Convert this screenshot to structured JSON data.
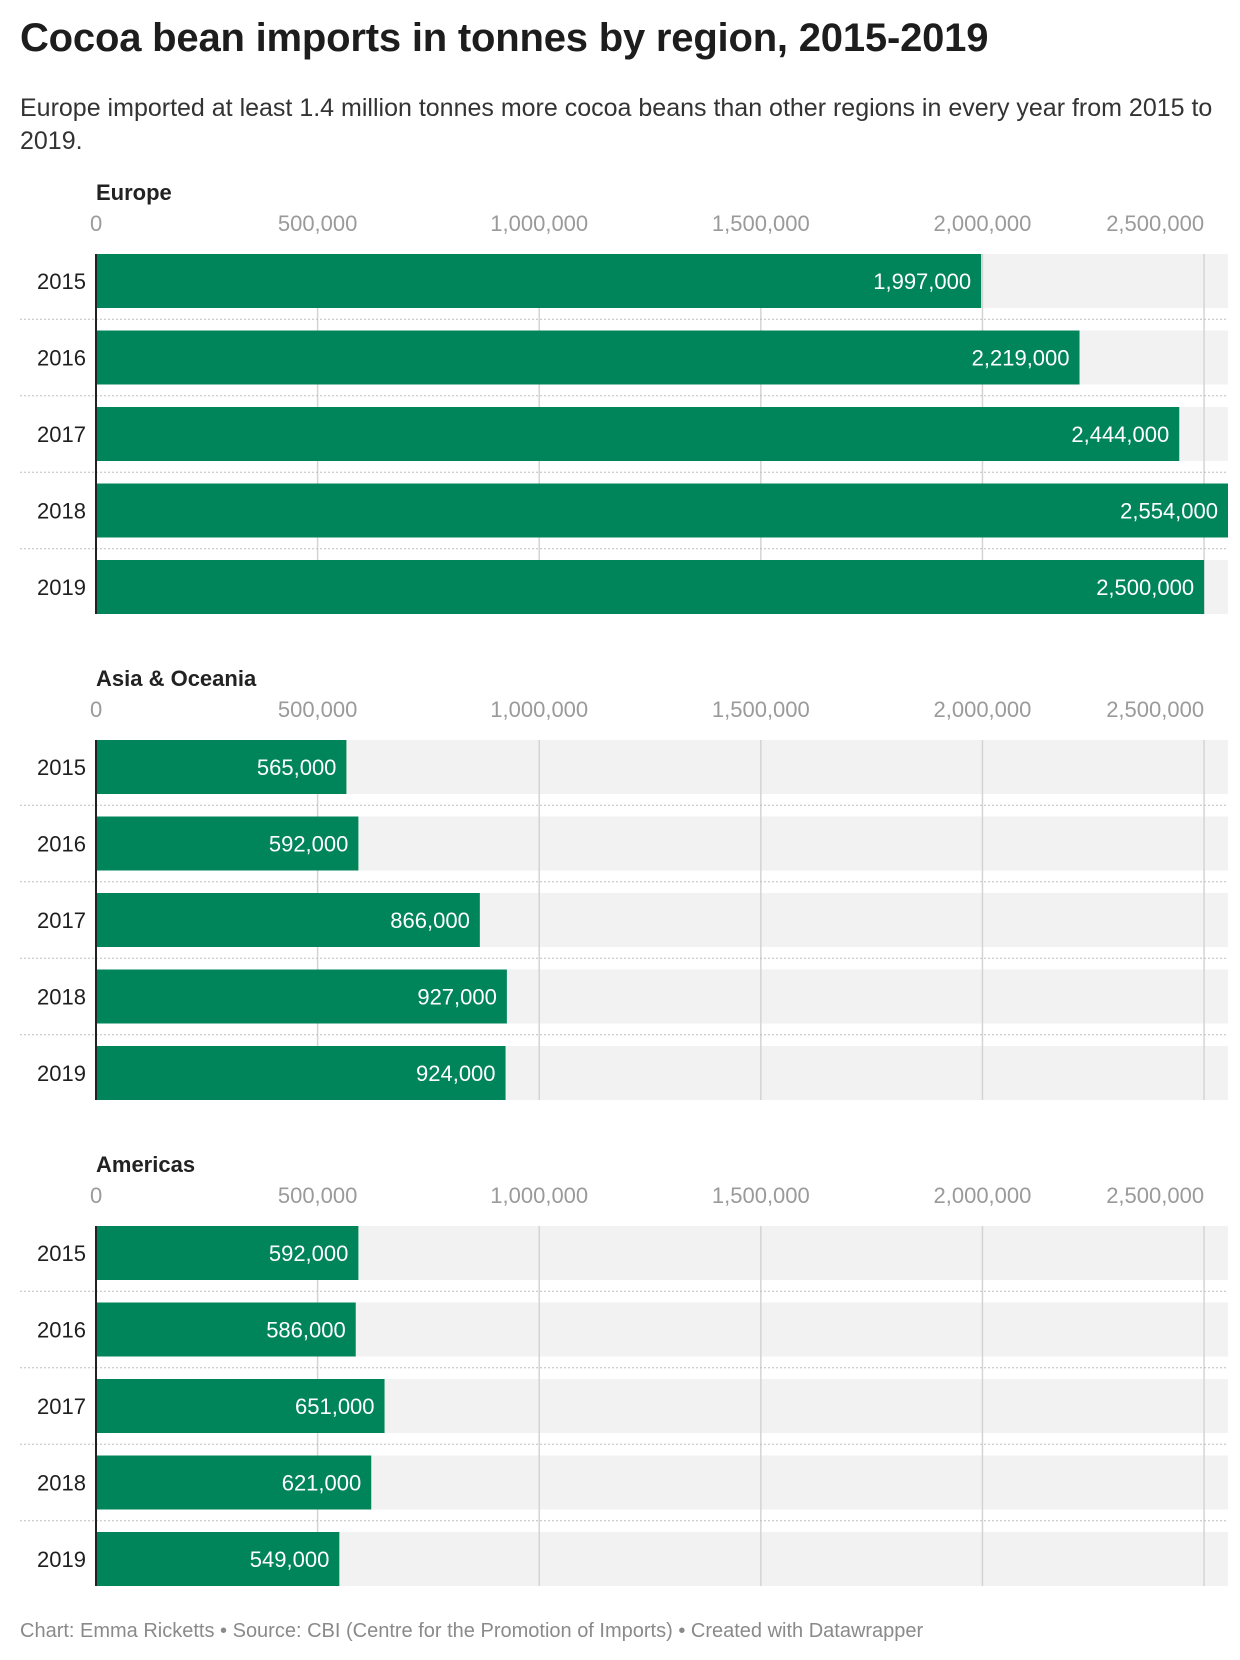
{
  "header": {
    "title": "Cocoa bean imports in tonnes by region, 2015-2019",
    "subtitle": "Europe imported at least 1.4 million tonnes more cocoa beans than other regions in every year from 2015 to 2019."
  },
  "footer": {
    "credit": "Chart: Emma Ricketts • Source: CBI (Centre for the Promotion of Imports) • Created with Datawrapper"
  },
  "colors": {
    "bar": "#00855a",
    "track": "#f2f2f2",
    "grid": "#d4d4d4",
    "tick_label": "#9a9a9a"
  },
  "chart_data": [
    {
      "type": "bar",
      "orientation": "horizontal",
      "title": "Europe",
      "categories": [
        "2015",
        "2016",
        "2017",
        "2018",
        "2019"
      ],
      "values": [
        1997000,
        2219000,
        2444000,
        2554000,
        2500000
      ],
      "value_labels": [
        "1,997,000",
        "2,219,000",
        "2,444,000",
        "2,554,000",
        "2,500,000"
      ],
      "xticks": [
        "0",
        "500,000",
        "1,000,000",
        "1,500,000",
        "2,000,000",
        "2,500,000"
      ],
      "xlim": [
        0,
        2554000
      ],
      "grid": true
    },
    {
      "type": "bar",
      "orientation": "horizontal",
      "title": "Asia & Oceania",
      "categories": [
        "2015",
        "2016",
        "2017",
        "2018",
        "2019"
      ],
      "values": [
        565000,
        592000,
        866000,
        927000,
        924000
      ],
      "value_labels": [
        "565,000",
        "592,000",
        "866,000",
        "927,000",
        "924,000"
      ],
      "xticks": [
        "0",
        "500,000",
        "1,000,000",
        "1,500,000",
        "2,000,000",
        "2,500,000"
      ],
      "xlim": [
        0,
        2554000
      ],
      "grid": true
    },
    {
      "type": "bar",
      "orientation": "horizontal",
      "title": "Americas",
      "categories": [
        "2015",
        "2016",
        "2017",
        "2018",
        "2019"
      ],
      "values": [
        592000,
        586000,
        651000,
        621000,
        549000
      ],
      "value_labels": [
        "592,000",
        "586,000",
        "651,000",
        "621,000",
        "549,000"
      ],
      "xticks": [
        "0",
        "500,000",
        "1,000,000",
        "1,500,000",
        "2,000,000",
        "2,500,000"
      ],
      "xlim": [
        0,
        2554000
      ],
      "grid": true
    }
  ]
}
